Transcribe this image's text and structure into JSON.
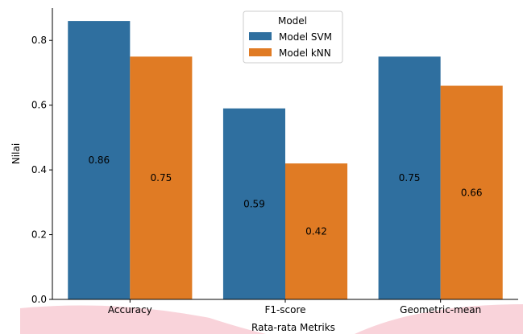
{
  "chart_data": {
    "type": "bar",
    "title": "",
    "xlabel": "Rata-rata Metriks",
    "ylabel": "Nilai",
    "ylim": [
      0,
      0.9
    ],
    "yticks": [
      0.0,
      0.2,
      0.4,
      0.6,
      0.8
    ],
    "ytick_labels": [
      "0.0",
      "0.2",
      "0.4",
      "0.6",
      "0.8"
    ],
    "categories": [
      "Accuracy",
      "F1-score",
      "Geometric-mean"
    ],
    "series": [
      {
        "name": "Model SVM",
        "color": "#2f6f9f",
        "values": [
          0.86,
          0.59,
          0.75
        ],
        "labels": [
          "0.86",
          "0.59",
          "0.75"
        ]
      },
      {
        "name": "Model kNN",
        "color": "#e07b24",
        "values": [
          0.75,
          0.42,
          0.66
        ],
        "labels": [
          "0.75",
          "0.42",
          "0.66"
        ]
      }
    ],
    "legend": {
      "title": "Model",
      "position": "top-center"
    },
    "grid": false
  }
}
